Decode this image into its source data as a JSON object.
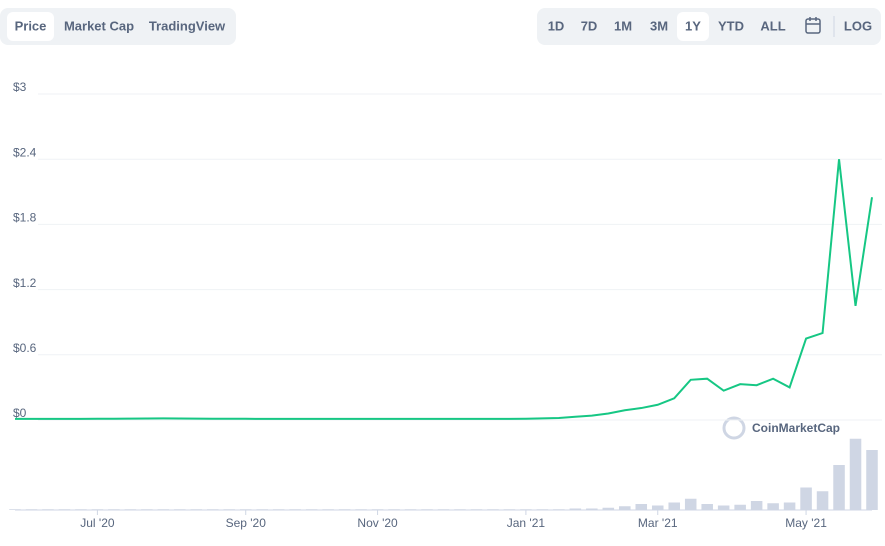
{
  "toolbar": {
    "views": [
      "Price",
      "Market Cap",
      "TradingView"
    ],
    "active_view": 0,
    "ranges": [
      "1D",
      "7D",
      "1M",
      "3M",
      "1Y",
      "YTD",
      "ALL"
    ],
    "active_range": 4,
    "scale_button": "LOG"
  },
  "chart_data": {
    "type": "line",
    "watermark": "CoinMarketCap",
    "categories": [
      null,
      null,
      null,
      null,
      null,
      "Jul '20",
      null,
      null,
      null,
      null,
      null,
      null,
      null,
      null,
      "Sep '20",
      null,
      null,
      null,
      null,
      null,
      null,
      null,
      "Nov '20",
      null,
      null,
      null,
      null,
      null,
      null,
      null,
      null,
      "Jan '21",
      null,
      null,
      null,
      null,
      null,
      null,
      null,
      "Mar '21",
      null,
      null,
      null,
      null,
      null,
      null,
      null,
      null,
      "May '21",
      null,
      null,
      null,
      null
    ],
    "series": [
      {
        "name": "Price",
        "color": "#16c784",
        "values": [
          0.01,
          0.01,
          0.01,
          0.01,
          0.01,
          0.012,
          0.012,
          0.013,
          0.014,
          0.015,
          0.014,
          0.013,
          0.012,
          0.012,
          0.011,
          0.01,
          0.01,
          0.01,
          0.01,
          0.01,
          0.01,
          0.01,
          0.01,
          0.01,
          0.01,
          0.01,
          0.01,
          0.01,
          0.01,
          0.01,
          0.01,
          0.012,
          0.015,
          0.018,
          0.03,
          0.04,
          0.06,
          0.09,
          0.11,
          0.14,
          0.2,
          0.37,
          0.38,
          0.27,
          0.33,
          0.32,
          0.38,
          0.3,
          0.75,
          0.8,
          2.4,
          1.05,
          2.05
        ]
      },
      {
        "name": "Volume",
        "color": "#cfd6e4",
        "axis": "y2",
        "values": [
          1,
          1,
          1,
          1,
          1,
          1,
          1,
          1,
          1,
          1,
          1,
          1,
          1,
          1,
          1,
          1,
          1,
          1,
          1,
          1,
          1,
          1,
          1,
          1,
          1,
          1,
          1,
          1,
          1,
          1,
          1,
          1,
          1,
          1,
          2,
          2,
          3,
          5,
          8,
          6,
          10,
          15,
          8,
          6,
          7,
          12,
          9,
          10,
          30,
          25,
          60,
          95,
          80
        ]
      }
    ],
    "ylim": [
      0,
      3
    ],
    "yticks": [
      {
        "value": 0,
        "label": "$0"
      },
      {
        "value": 0.6,
        "label": "$0.6"
      },
      {
        "value": 1.2,
        "label": "$1.2"
      },
      {
        "value": 1.8,
        "label": "$1.8"
      },
      {
        "value": 2.4,
        "label": "$2.4"
      },
      {
        "value": 3,
        "label": "$3"
      }
    ],
    "y2lim": [
      0,
      100
    ],
    "grid": true
  }
}
